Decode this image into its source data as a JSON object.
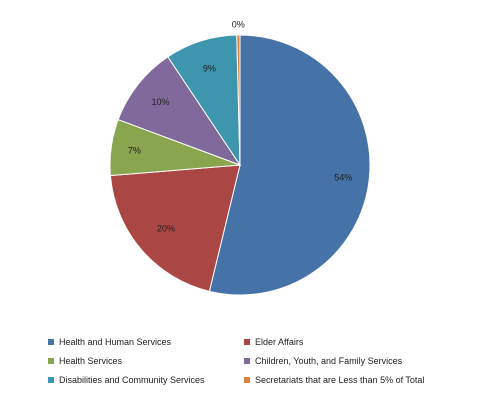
{
  "chart_data": {
    "type": "pie",
    "slices": [
      {
        "name": "Health and Human Services",
        "value": 54,
        "label": "54%",
        "color": "#4572a7"
      },
      {
        "name": "Elder Affairs",
        "value": 20,
        "label": "20%",
        "color": "#aa4643"
      },
      {
        "name": "Health Services",
        "value": 7,
        "label": "7%",
        "color": "#89a54e"
      },
      {
        "name": "Children, Youth, and Family Services",
        "value": 10,
        "label": "10%",
        "color": "#80699b"
      },
      {
        "name": "Disabilities and Community Services",
        "value": 9,
        "label": "9%",
        "color": "#3d96ae"
      },
      {
        "name": "Secretariats that are Less than 5% of Total",
        "value": 0.4,
        "label": "0%",
        "color": "#db843d"
      }
    ],
    "legend": {
      "placement": "bottom",
      "items": [
        {
          "label": "Health and Human Services",
          "color": "#4572a7"
        },
        {
          "label": "Elder Affairs",
          "color": "#aa4643"
        },
        {
          "label": "Health Services",
          "color": "#89a54e"
        },
        {
          "label": "Children, Youth, and Family Services",
          "color": "#80699b"
        },
        {
          "label": "Disabilities and Community Services",
          "color": "#3d96ae"
        },
        {
          "label": "Secretariats that are Less than 5% of Total",
          "color": "#db843d"
        }
      ]
    }
  }
}
